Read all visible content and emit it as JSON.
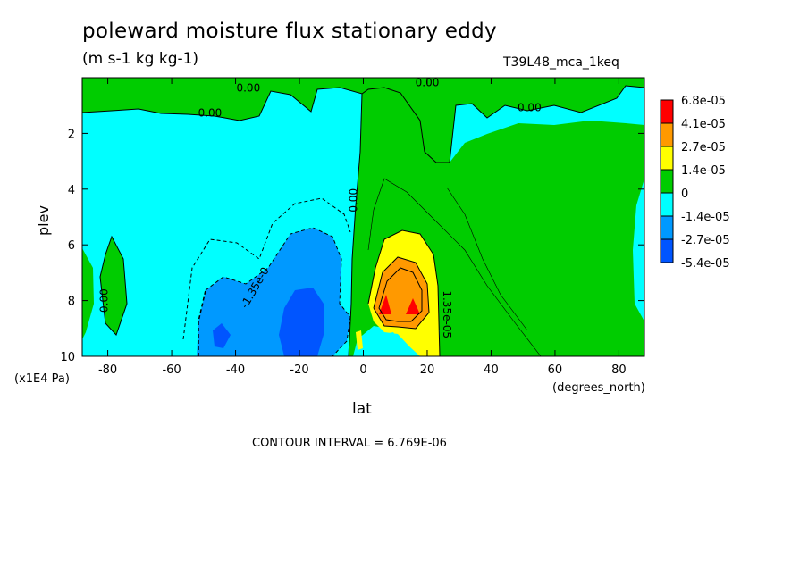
{
  "title": "poleward moisture flux stationary eddy",
  "units": "(m s-1 kg kg-1)",
  "run_id": "T39L48_mca_1keq",
  "contour_interval": "CONTOUR INTERVAL = 6.769E-06",
  "chart_data": {
    "type": "heatmap",
    "title": "poleward moisture flux stationary eddy",
    "subtitle": "(m s-1 kg kg-1)",
    "xlabel": "lat",
    "x_units": "(degrees_north)",
    "ylabel": "plev",
    "y_units": "(x1E4 Pa)",
    "xlim": [
      -88,
      88
    ],
    "ylim": [
      10,
      0
    ],
    "x_ticks": [
      "-80",
      "-60",
      "-40",
      "-20",
      "0",
      "20",
      "40",
      "60",
      "80"
    ],
    "y_ticks": [
      "2",
      "4",
      "6",
      "8",
      "10"
    ],
    "colorbar": {
      "labels": [
        "6.8e-05",
        "4.1e-05",
        "2.7e-05",
        "1.4e-05",
        "0",
        "-1.4e-05",
        "-2.7e-05",
        "-5.4e-05"
      ],
      "colors": [
        "#ff0000",
        "#ff9900",
        "#ffff00",
        "#00cc00",
        "#00ffff",
        "#0099ff",
        "#0055ff"
      ]
    },
    "contour_labels": [
      {
        "text": "0.00",
        "lat": -36,
        "plev": 0.5
      },
      {
        "text": "0.00",
        "lat": 20,
        "plev": 0.3
      },
      {
        "text": "0.00",
        "lat": -48,
        "plev": 1.4
      },
      {
        "text": "0.00",
        "lat": 52,
        "plev": 1.2
      },
      {
        "text": "0.00",
        "lat": -2,
        "plev": 4.4
      },
      {
        "text": "0.00",
        "lat": -80,
        "plev": 8.0
      },
      {
        "text": "-1.35e-0",
        "lat": -33,
        "plev": 7.6
      },
      {
        "text": "1.35e-05",
        "lat": 25,
        "plev": 8.5
      }
    ],
    "fields": {
      "green": "#00cc00",
      "cyan": "#00ffff",
      "light_blue": "#0099ff",
      "blue": "#0055ff",
      "yellow": "#ffff00",
      "orange": "#ff9900",
      "red": "#ff0000"
    }
  }
}
